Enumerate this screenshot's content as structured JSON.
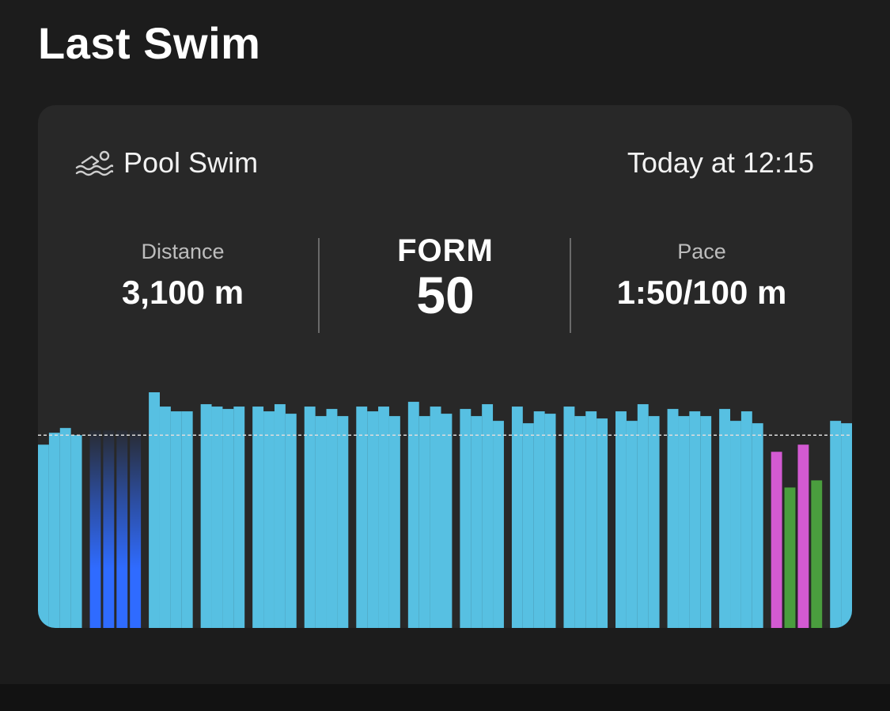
{
  "page": {
    "title": "Last Swim"
  },
  "card": {
    "activity_type": "Pool Swim",
    "activity_icon": "swimmer-icon",
    "time": "Today at 12:15",
    "distance": {
      "label": "Distance",
      "value": "3,100 m"
    },
    "form": {
      "label": "FORM",
      "value": "50"
    },
    "pace": {
      "label": "Pace",
      "value": "1:50/100 m"
    }
  },
  "colors": {
    "background": "#1c1c1c",
    "card": "#282828",
    "freestyle": "#57c0e2",
    "kick": "#2f6bff",
    "pink": "#d35ad2",
    "green": "#4a9e3e",
    "reference_line": "#dddddd"
  },
  "chart_data": {
    "type": "bar",
    "description_source": "per-length stroke chart",
    "value_unit": "relative pace (0-100)",
    "ylim": [
      0,
      100
    ],
    "reference_value": 81,
    "groups": [
      {
        "kind": "freestyle",
        "values": [
          77,
          82,
          84,
          81
        ]
      },
      {
        "kind": "kick",
        "values": [
          83,
          83,
          83,
          83
        ]
      },
      {
        "kind": "freestyle",
        "values": [
          99,
          93,
          91,
          91
        ]
      },
      {
        "kind": "freestyle",
        "values": [
          94,
          93,
          92,
          93
        ]
      },
      {
        "kind": "freestyle",
        "values": [
          93,
          91,
          94,
          90
        ]
      },
      {
        "kind": "freestyle",
        "values": [
          93,
          89,
          92,
          89
        ]
      },
      {
        "kind": "freestyle",
        "values": [
          93,
          91,
          93,
          89
        ]
      },
      {
        "kind": "freestyle",
        "values": [
          95,
          89,
          93,
          90
        ]
      },
      {
        "kind": "freestyle",
        "values": [
          92,
          89,
          94,
          87
        ]
      },
      {
        "kind": "freestyle",
        "values": [
          93,
          86,
          91,
          90
        ]
      },
      {
        "kind": "freestyle",
        "values": [
          93,
          89,
          91,
          88
        ]
      },
      {
        "kind": "freestyle",
        "values": [
          91,
          87,
          94,
          89
        ]
      },
      {
        "kind": "freestyle",
        "values": [
          92,
          89,
          91,
          89
        ]
      },
      {
        "kind": "freestyle",
        "values": [
          92,
          87,
          91,
          86
        ]
      },
      {
        "kind": "drill",
        "values": [
          74,
          59,
          77,
          62
        ]
      },
      {
        "kind": "freestyle",
        "values": [
          87,
          86
        ]
      }
    ]
  }
}
